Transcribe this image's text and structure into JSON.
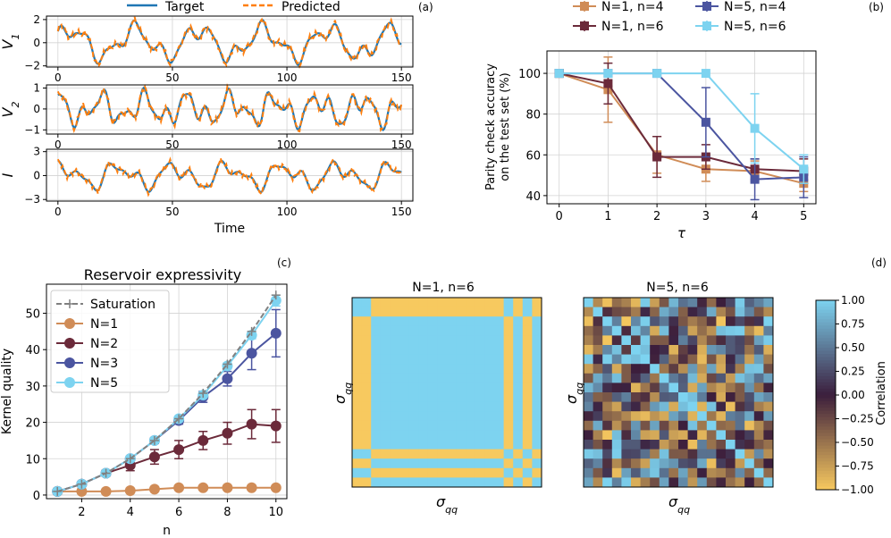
{
  "panel_labels": [
    "(a)",
    "(b)",
    "(c)",
    "(d)"
  ],
  "colors": {
    "target": "#1f77b4",
    "predicted": "#ff7f0e",
    "n1n4": "#d08c57",
    "n1n6": "#6b2a3a",
    "n5n4": "#4b55a0",
    "n5n6": "#7dd3f0",
    "N1": "#d08c57",
    "N2": "#6b2a3a",
    "N3": "#4b55a0",
    "N5": "#7dd3f0",
    "saturation": "#808080",
    "grid": "#d3d3d3"
  },
  "chart_data": [
    {
      "id": "a",
      "type": "line",
      "legend": [
        "Target",
        "Predicted"
      ],
      "xlabel": "Time",
      "xticks": [
        0,
        50,
        100,
        150
      ],
      "xlim": [
        -5,
        155
      ],
      "subplots": [
        {
          "ylabel": "V1",
          "ylim": [
            -2.1,
            2.3
          ],
          "yticks": [
            -2,
            0,
            2
          ],
          "amp": 1.6,
          "components": [
            {
              "a": 1.0,
              "p": 28,
              "ph": 0.3
            },
            {
              "a": 0.55,
              "p": 11,
              "ph": 1.1
            },
            {
              "a": 0.2,
              "p": 6.3,
              "ph": 0.4
            }
          ]
        },
        {
          "ylabel": "V2",
          "ylim": [
            -1.2,
            1.15
          ],
          "yticks": [
            -1,
            0,
            1
          ],
          "amp": 0.95,
          "components": [
            {
              "a": 0.7,
              "p": 19,
              "ph": 1.7
            },
            {
              "a": 0.6,
              "p": 9,
              "ph": 0.2
            },
            {
              "a": 0.25,
              "p": 5.4,
              "ph": 2.4
            }
          ]
        },
        {
          "ylabel": "I",
          "ylim": [
            -3.2,
            3.3
          ],
          "yticks": [
            -3,
            0,
            3
          ],
          "amp": 2.1,
          "components": [
            {
              "a": 0.75,
              "p": 24,
              "ph": 0.9
            },
            {
              "a": 0.5,
              "p": 12,
              "ph": 2.2
            },
            {
              "a": 0.25,
              "p": 7.1,
              "ph": 1.4
            }
          ]
        }
      ]
    },
    {
      "id": "b",
      "type": "line",
      "xlabel": "τ",
      "ylabel_lines": [
        "Parity check accuracy",
        "on the test set (%)"
      ],
      "xlim": [
        -0.25,
        5.25
      ],
      "ylim": [
        36,
        111
      ],
      "xticks": [
        0,
        1,
        2,
        3,
        4,
        5
      ],
      "yticks": [
        40,
        60,
        80,
        100
      ],
      "x": [
        0,
        1,
        2,
        3,
        4,
        5
      ],
      "series": [
        {
          "name": "N=1, n=4",
          "values": [
            100,
            92,
            60,
            53,
            52,
            46
          ],
          "err": [
            0,
            16,
            9,
            6,
            5,
            4
          ]
        },
        {
          "name": "N=1, n=6",
          "values": [
            100,
            95,
            59,
            59,
            53,
            52
          ],
          "err": [
            0,
            10,
            10,
            6,
            5,
            6
          ]
        },
        {
          "name": "N=5, n=4",
          "values": [
            100,
            100,
            100,
            76,
            48,
            49
          ],
          "err": [
            0,
            0,
            0,
            17,
            10,
            10
          ]
        },
        {
          "name": "N=5, n=6",
          "values": [
            100,
            100,
            100,
            100,
            73,
            53
          ],
          "err": [
            0,
            0,
            0,
            0,
            17,
            7
          ]
        }
      ]
    },
    {
      "id": "c",
      "type": "line",
      "title": "Reservoir expressivity",
      "xlabel": "n",
      "ylabel": "Kernel quality",
      "xlim": [
        0.55,
        10.45
      ],
      "ylim": [
        -1,
        58
      ],
      "xticks": [
        2,
        4,
        6,
        8,
        10
      ],
      "yticks": [
        0,
        10,
        20,
        30,
        40,
        50
      ],
      "x": [
        1,
        2,
        3,
        4,
        5,
        6,
        7,
        8,
        9,
        10
      ],
      "saturation": {
        "name": "Saturation",
        "values": [
          1,
          3,
          6,
          10,
          15,
          21,
          28,
          36,
          45,
          55
        ]
      },
      "series": [
        {
          "name": "N=1",
          "values": [
            1,
            1,
            1,
            1.2,
            1.6,
            2,
            2,
            2,
            2,
            2
          ],
          "err": [
            0,
            0,
            0,
            0.3,
            0.3,
            0.2,
            0.2,
            0.2,
            0.2,
            0.2
          ]
        },
        {
          "name": "N=2",
          "values": [
            1,
            3,
            6,
            8.2,
            10.5,
            12.5,
            15,
            17,
            19.5,
            19
          ],
          "err": [
            0,
            0.4,
            0.8,
            1.5,
            2,
            2.5,
            2.5,
            3,
            4,
            4.5
          ]
        },
        {
          "name": "N=3",
          "values": [
            1,
            3,
            6,
            10,
            15,
            20.5,
            27,
            32,
            39,
            44.5
          ],
          "err": [
            0,
            0.2,
            0.3,
            0.5,
            0.8,
            1,
            1.5,
            2,
            4.5,
            6.5
          ]
        },
        {
          "name": "N=5",
          "values": [
            1,
            3,
            6,
            10,
            15,
            21,
            27.5,
            35.5,
            44,
            53.5
          ],
          "err": [
            0,
            0.1,
            0.2,
            0.3,
            0.4,
            0.5,
            0.6,
            0.8,
            1,
            1.5
          ]
        }
      ]
    },
    {
      "id": "d",
      "type": "heatmap",
      "titles": [
        "N=1, n=6",
        "N=5, n=6"
      ],
      "xlabel": "σqq",
      "ylabel": "σqq",
      "colorbar_label": "Correlation",
      "colorbar_ticks": [
        "1.00",
        "0.75",
        "0.50",
        "0.25",
        "0.00",
        "−0.25",
        "−0.50",
        "−0.75",
        "−1.00"
      ],
      "colorbar_values": [
        1,
        0.75,
        0.5,
        0.25,
        0,
        -0.25,
        -0.5,
        -0.75,
        -1
      ],
      "matrix_size": 20,
      "left_pattern": [
        1,
        1,
        0,
        0,
        0,
        0,
        0,
        0,
        0,
        0,
        0,
        0,
        0,
        0,
        0,
        0,
        1,
        0,
        1,
        0
      ]
    }
  ]
}
